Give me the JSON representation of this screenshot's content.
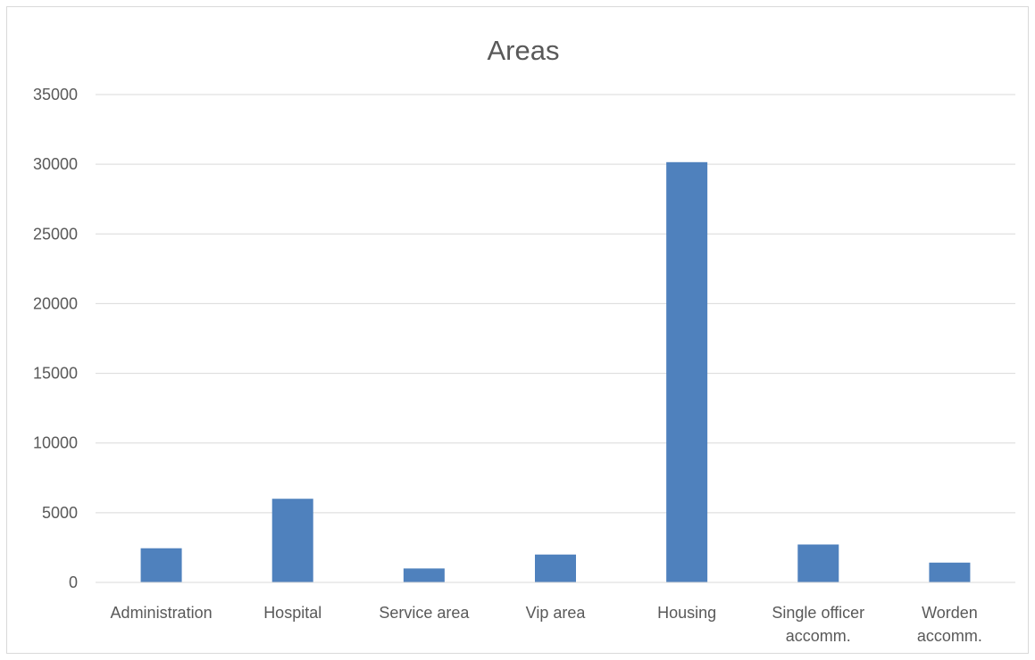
{
  "chart_data": {
    "type": "bar",
    "title": "Areas",
    "categories": [
      "Administration",
      "Hospital",
      "Service area",
      "Vip area",
      "Housing",
      "Single officer accomm.",
      "Worden accomm."
    ],
    "category_label_lines": [
      [
        "Administration"
      ],
      [
        "Hospital"
      ],
      [
        "Service area"
      ],
      [
        "Vip area"
      ],
      [
        "Housing"
      ],
      [
        "Single officer",
        "accomm."
      ],
      [
        "Worden",
        "accomm."
      ]
    ],
    "series": [
      {
        "values": [
          2450,
          6000,
          1000,
          2000,
          30150,
          2720,
          1420
        ]
      }
    ],
    "xlabel": "",
    "ylabel": "",
    "ylim": [
      0,
      35000
    ],
    "yticks": [
      0,
      5000,
      10000,
      15000,
      20000,
      25000,
      30000,
      35000
    ],
    "ytick_labels": [
      "0",
      "5000",
      "10000",
      "15000",
      "20000",
      "25000",
      "30000",
      "35000"
    ],
    "grid": true,
    "legend": "none",
    "colors": {
      "bar": "#4f81bd",
      "grid": "#d9d9d9",
      "text": "#595959",
      "border": "#d9d9d9"
    }
  }
}
